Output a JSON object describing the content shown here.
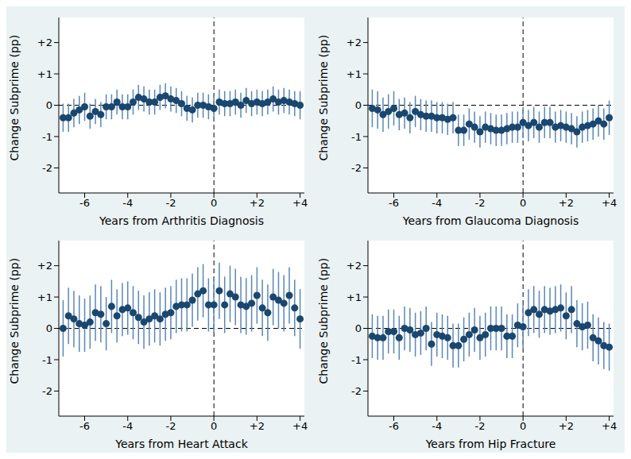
{
  "chart_data": [
    {
      "type": "scatter",
      "xlabel": "Years from Arthritis Diagnosis",
      "ylabel": "Change Subprime (pp)",
      "color": "#1a476f",
      "marker": "circle",
      "x": [
        -7,
        -6.75,
        -6.5,
        -6.25,
        -6,
        -5.75,
        -5.5,
        -5.25,
        -5,
        -4.75,
        -4.5,
        -4.25,
        -4,
        -3.75,
        -3.5,
        -3.25,
        -3,
        -2.75,
        -2.5,
        -2.25,
        -2,
        -1.75,
        -1.5,
        -1.25,
        -1,
        -0.75,
        -0.5,
        -0.25,
        0,
        0.25,
        0.5,
        0.75,
        1,
        1.25,
        1.5,
        1.75,
        2,
        2.25,
        2.5,
        2.75,
        3,
        3.25,
        3.5,
        3.75,
        4
      ],
      "values": [
        -0.4,
        -0.4,
        -0.25,
        -0.15,
        -0.05,
        -0.35,
        -0.2,
        -0.3,
        -0.05,
        -0.05,
        0.1,
        -0.05,
        -0.05,
        0.1,
        0.25,
        0.2,
        0.1,
        0.1,
        0.25,
        0.3,
        0.2,
        0.15,
        0.05,
        -0.1,
        -0.15,
        0,
        0,
        -0.05,
        -0.1,
        0.1,
        0.05,
        0.05,
        0.1,
        0,
        0.15,
        0.05,
        0.1,
        0.05,
        0.1,
        0.2,
        0.1,
        0.15,
        0.1,
        0.05,
        0
      ],
      "errors": [
        0.45,
        0.45,
        0.45,
        0.45,
        0.45,
        0.4,
        0.4,
        0.4,
        0.4,
        0.4,
        0.4,
        0.4,
        0.4,
        0.4,
        0.4,
        0.4,
        0.4,
        0.4,
        0.4,
        0.4,
        0.4,
        0.4,
        0.4,
        0.4,
        0.4,
        0.4,
        0.4,
        0.4,
        0.4,
        0.4,
        0.4,
        0.4,
        0.4,
        0.4,
        0.4,
        0.4,
        0.4,
        0.4,
        0.4,
        0.4,
        0.4,
        0.4,
        0.4,
        0.4,
        0.45
      ],
      "xlim": [
        -7.2,
        4.2
      ],
      "ylim": [
        -2.8,
        2.8
      ],
      "xticks": [
        -6,
        -4,
        -2,
        0,
        {
          "value": 2,
          "label": "+2"
        },
        {
          "value": 4,
          "label": "+4"
        }
      ],
      "yticks": [
        {
          "value": 2,
          "label": "+2"
        },
        {
          "value": 1,
          "label": "+1"
        },
        0,
        -1,
        -2
      ],
      "vline": 0,
      "hline": 0
    },
    {
      "type": "scatter",
      "xlabel": "Years from Glaucoma Diagnosis",
      "ylabel": "Change Subprime (pp)",
      "color": "#1a476f",
      "marker": "circle",
      "x": [
        -7,
        -6.75,
        -6.5,
        -6.25,
        -6,
        -5.75,
        -5.5,
        -5.25,
        -5,
        -4.75,
        -4.5,
        -4.25,
        -4,
        -3.75,
        -3.5,
        -3.25,
        -3,
        -2.75,
        -2.5,
        -2.25,
        -2,
        -1.75,
        -1.5,
        -1.25,
        -1,
        -0.75,
        -0.5,
        -0.25,
        0,
        0.25,
        0.5,
        0.75,
        1,
        1.25,
        1.5,
        1.75,
        2,
        2.25,
        2.5,
        2.75,
        3,
        3.25,
        3.5,
        3.75,
        4
      ],
      "values": [
        -0.1,
        -0.15,
        -0.3,
        -0.2,
        -0.1,
        -0.3,
        -0.25,
        -0.4,
        -0.2,
        -0.3,
        -0.35,
        -0.35,
        -0.4,
        -0.4,
        -0.45,
        -0.4,
        -0.8,
        -0.8,
        -0.6,
        -0.7,
        -0.85,
        -0.7,
        -0.75,
        -0.8,
        -0.8,
        -0.75,
        -0.7,
        -0.7,
        -0.55,
        -0.65,
        -0.55,
        -0.7,
        -0.55,
        -0.55,
        -0.7,
        -0.65,
        -0.7,
        -0.75,
        -0.85,
        -0.7,
        -0.65,
        -0.6,
        -0.5,
        -0.6,
        -0.4
      ],
      "errors": [
        0.6,
        0.6,
        0.55,
        0.55,
        0.55,
        0.5,
        0.5,
        0.5,
        0.5,
        0.5,
        0.5,
        0.5,
        0.5,
        0.5,
        0.5,
        0.5,
        0.5,
        0.5,
        0.5,
        0.5,
        0.5,
        0.5,
        0.5,
        0.5,
        0.5,
        0.5,
        0.5,
        0.5,
        0.5,
        0.5,
        0.5,
        0.5,
        0.5,
        0.5,
        0.5,
        0.5,
        0.5,
        0.5,
        0.5,
        0.5,
        0.5,
        0.5,
        0.5,
        0.5,
        0.55
      ],
      "xlim": [
        -7.2,
        4.2
      ],
      "ylim": [
        -2.8,
        2.8
      ],
      "xticks": [
        -6,
        -4,
        -2,
        0,
        {
          "value": 2,
          "label": "+2"
        },
        {
          "value": 4,
          "label": "+4"
        }
      ],
      "yticks": [
        {
          "value": 2,
          "label": "+2"
        },
        {
          "value": 1,
          "label": "+1"
        },
        0,
        -1,
        -2
      ],
      "vline": 0,
      "hline": 0
    },
    {
      "type": "scatter",
      "xlabel": "Years from Heart Attack",
      "ylabel": "Change Subprime (pp)",
      "color": "#1a476f",
      "marker": "circle",
      "x": [
        -7,
        -6.75,
        -6.5,
        -6.25,
        -6,
        -5.75,
        -5.5,
        -5.25,
        -5,
        -4.75,
        -4.5,
        -4.25,
        -4,
        -3.75,
        -3.5,
        -3.25,
        -3,
        -2.75,
        -2.5,
        -2.25,
        -2,
        -1.75,
        -1.5,
        -1.25,
        -1,
        -0.75,
        -0.5,
        -0.25,
        0,
        0.25,
        0.5,
        0.75,
        1,
        1.25,
        1.5,
        1.75,
        2,
        2.25,
        2.5,
        2.75,
        3,
        3.25,
        3.5,
        3.75,
        4
      ],
      "values": [
        0,
        0.4,
        0.3,
        0.15,
        0.1,
        0.2,
        0.5,
        0.45,
        0.15,
        0.7,
        0.4,
        0.6,
        0.65,
        0.5,
        0.35,
        0.2,
        0.3,
        0.4,
        0.3,
        0.45,
        0.5,
        0.7,
        0.75,
        0.75,
        0.9,
        1.1,
        1.2,
        0.75,
        0.75,
        1.2,
        0.75,
        1.1,
        1.0,
        0.75,
        0.7,
        0.8,
        1.05,
        0.65,
        0.5,
        1.0,
        0.9,
        0.8,
        1.05,
        0.65,
        0.3
      ],
      "errors": [
        0.9,
        0.9,
        0.9,
        0.9,
        0.85,
        0.85,
        0.9,
        0.9,
        0.85,
        0.85,
        0.85,
        0.85,
        0.85,
        0.85,
        0.85,
        0.85,
        0.85,
        0.85,
        0.85,
        0.85,
        0.85,
        0.85,
        0.85,
        0.85,
        0.85,
        0.85,
        0.85,
        0.85,
        0.9,
        0.9,
        0.9,
        0.9,
        0.9,
        0.9,
        0.9,
        0.9,
        0.9,
        0.9,
        0.9,
        0.9,
        0.9,
        0.9,
        0.9,
        0.9,
        0.95
      ],
      "xlim": [
        -7.2,
        4.2
      ],
      "ylim": [
        -2.8,
        2.8
      ],
      "xticks": [
        -6,
        -4,
        -2,
        0,
        {
          "value": 2,
          "label": "+2"
        },
        {
          "value": 4,
          "label": "+4"
        }
      ],
      "yticks": [
        {
          "value": 2,
          "label": "+2"
        },
        {
          "value": 1,
          "label": "+1"
        },
        0,
        -1,
        -2
      ],
      "vline": 0,
      "hline": 0
    },
    {
      "type": "scatter",
      "xlabel": "Years from Hip Fracture",
      "ylabel": "Change Subprime (pp)",
      "color": "#1a476f",
      "marker": "circle",
      "x": [
        -7,
        -6.75,
        -6.5,
        -6.25,
        -6,
        -5.75,
        -5.5,
        -5.25,
        -5,
        -4.75,
        -4.5,
        -4.25,
        -4,
        -3.75,
        -3.5,
        -3.25,
        -3,
        -2.75,
        -2.5,
        -2.25,
        -2,
        -1.75,
        -1.5,
        -1.25,
        -1,
        -0.75,
        -0.5,
        -0.25,
        0,
        0.25,
        0.5,
        0.75,
        1,
        1.25,
        1.5,
        1.75,
        2,
        2.25,
        2.5,
        2.75,
        3,
        3.25,
        3.5,
        3.75,
        4
      ],
      "values": [
        -0.25,
        -0.3,
        -0.3,
        -0.1,
        -0.1,
        -0.3,
        0,
        -0.05,
        -0.2,
        -0.15,
        0,
        -0.5,
        -0.2,
        -0.25,
        -0.3,
        -0.55,
        -0.55,
        -0.35,
        -0.2,
        -0.05,
        -0.3,
        -0.2,
        0,
        0,
        0,
        -0.25,
        -0.25,
        0.1,
        0.05,
        0.5,
        0.6,
        0.45,
        0.6,
        0.55,
        0.6,
        0.65,
        0.4,
        0.6,
        0.15,
        0.05,
        0.1,
        -0.3,
        -0.4,
        -0.55,
        -0.6
      ],
      "errors": [
        0.7,
        0.7,
        0.7,
        0.7,
        0.7,
        0.7,
        0.7,
        0.7,
        0.7,
        0.7,
        0.7,
        0.7,
        0.7,
        0.7,
        0.7,
        0.7,
        0.7,
        0.7,
        0.7,
        0.7,
        0.7,
        0.7,
        0.7,
        0.7,
        0.7,
        0.7,
        0.7,
        0.7,
        0.7,
        0.75,
        0.75,
        0.75,
        0.75,
        0.75,
        0.75,
        0.75,
        0.75,
        0.75,
        0.75,
        0.75,
        0.75,
        0.75,
        0.75,
        0.75,
        0.75
      ],
      "xlim": [
        -7.2,
        4.2
      ],
      "ylim": [
        -2.8,
        2.8
      ],
      "xticks": [
        -6,
        -4,
        -2,
        0,
        {
          "value": 2,
          "label": "+2"
        },
        {
          "value": 4,
          "label": "+4"
        }
      ],
      "yticks": [
        {
          "value": 2,
          "label": "+2"
        },
        {
          "value": 1,
          "label": "+1"
        },
        0,
        -1,
        -2
      ],
      "vline": 0,
      "hline": 0
    }
  ]
}
